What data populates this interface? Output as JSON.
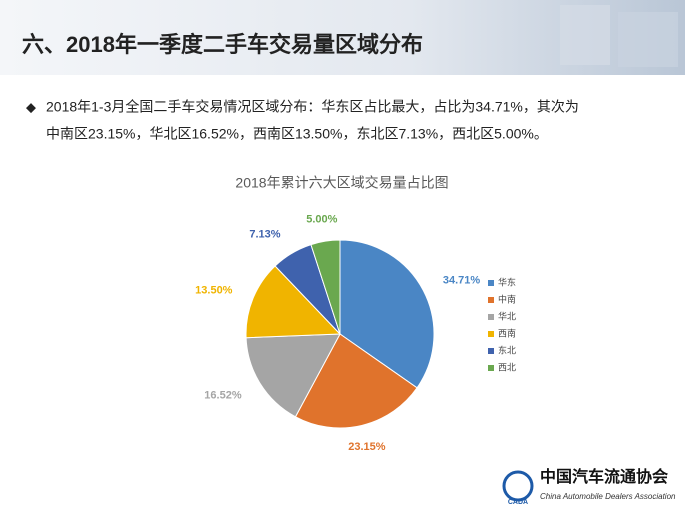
{
  "header": {
    "title": "六、2018年一季度二手车交易量区域分布"
  },
  "bullet": {
    "lines": [
      "2018年1-3月全国二手车交易情况区域分布：华东区占比最大，占比为34.71%，其次为",
      "中南区23.15%，华北区16.52%，西南区13.50%，东北区7.13%，西北区5.00%。"
    ]
  },
  "chart_data": {
    "type": "pie",
    "title": "2018年累计六大区域交易量占比图",
    "categories": [
      "华东",
      "中南",
      "华北",
      "西南",
      "东北",
      "西北"
    ],
    "values": [
      34.71,
      23.15,
      16.52,
      13.5,
      7.13,
      5.0
    ],
    "value_labels": [
      "34.71%",
      "23.15%",
      "16.52%",
      "13.50%",
      "7.13%",
      "5.00%"
    ],
    "colors": [
      "#4a86c5",
      "#e0732c",
      "#a5a5a5",
      "#f0b400",
      "#3f62ad",
      "#6aa84f"
    ],
    "legend": "right"
  },
  "logo": {
    "name": "中国汽车流通协会",
    "english": "China Automobile Dealers Association",
    "abbr": "CADA"
  }
}
